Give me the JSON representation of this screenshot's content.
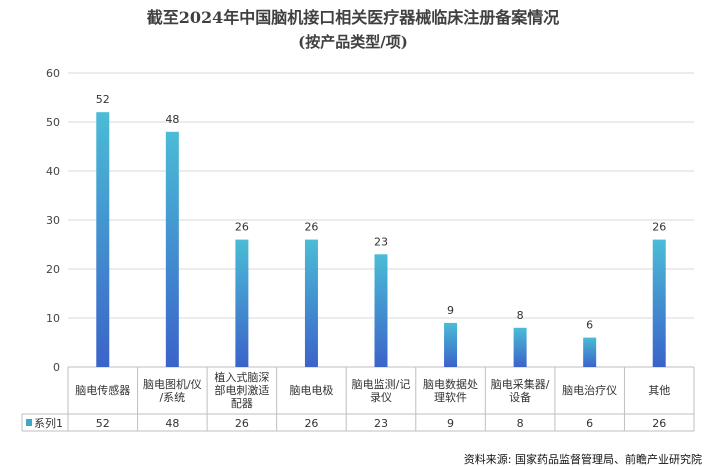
{
  "chart_data": {
    "type": "bar",
    "title_line1": "截至2024年中国脑机接口相关医疗器械临床注册备案情况",
    "title_line2": "(按产品类型/项)",
    "categories": [
      [
        "脑电传感器"
      ],
      [
        "脑电图机/仪",
        "/系统"
      ],
      [
        "植入式脑深",
        "部电刺激适",
        "配器"
      ],
      [
        "脑电电极"
      ],
      [
        "脑电监测/记",
        "录仪"
      ],
      [
        "脑电数据处",
        "理软件"
      ],
      [
        "脑电采集器/",
        "设备"
      ],
      [
        "脑电治疗仪"
      ],
      [
        "其他"
      ]
    ],
    "series": [
      {
        "name": "系列1",
        "values": [
          52,
          48,
          26,
          26,
          23,
          9,
          8,
          6,
          26
        ]
      }
    ],
    "ylim": [
      0,
      60
    ],
    "yticks": [
      0,
      10,
      20,
      30,
      40,
      50,
      60
    ],
    "grid": true,
    "colors": {
      "bar_top": "#4bbcd6",
      "bar_bottom": "#3b63c9",
      "legend_key": "#3fa8c8",
      "grid": "#d9d9d9"
    },
    "source": "资料来源: 国家药品监督管理局、前瞻产业研究院"
  }
}
